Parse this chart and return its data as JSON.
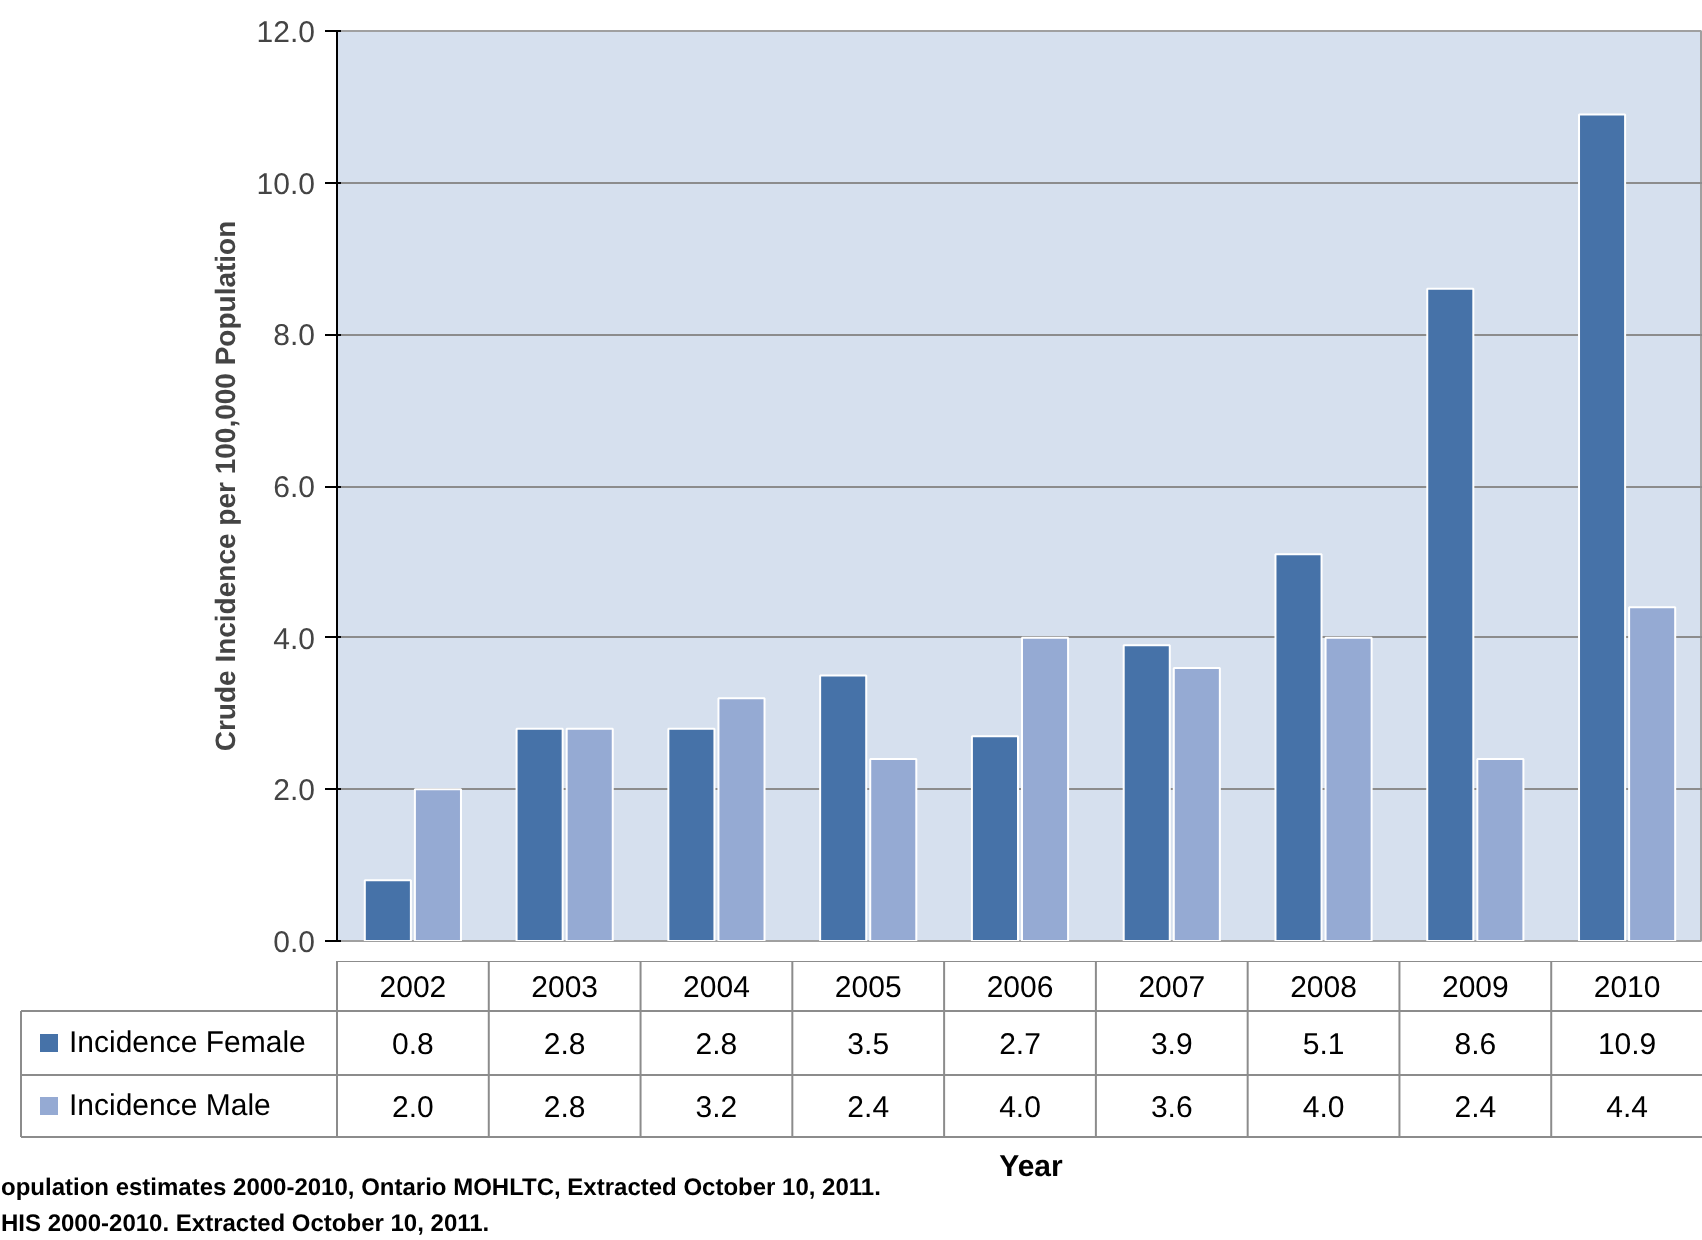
{
  "chart_data": {
    "type": "bar",
    "xlabel": "Year",
    "ylabel": "Crude Incidence per 100,000 Population",
    "categories": [
      "2002",
      "2003",
      "2004",
      "2005",
      "2006",
      "2007",
      "2008",
      "2009",
      "2010"
    ],
    "series": [
      {
        "name": "Incidence Female",
        "color": "#4672a8",
        "values": [
          0.8,
          2.8,
          2.8,
          3.5,
          2.7,
          3.9,
          5.1,
          8.6,
          10.9
        ],
        "value_labels": [
          "0.8",
          "2.8",
          "2.8",
          "3.5",
          "2.7",
          "3.9",
          "5.1",
          "8.6",
          "10.9"
        ]
      },
      {
        "name": "Incidence Male",
        "color": "#95aad3",
        "values": [
          2.0,
          2.8,
          3.2,
          2.4,
          4.0,
          3.6,
          4.0,
          2.4,
          4.4
        ],
        "value_labels": [
          "2.0",
          "2.8",
          "3.2",
          "2.4",
          "4.0",
          "3.6",
          "4.0",
          "2.4",
          "4.4"
        ]
      }
    ],
    "ylim": [
      0,
      12
    ],
    "yticks": [
      {
        "value": 0,
        "label": "0.0"
      },
      {
        "value": 2,
        "label": "2.0"
      },
      {
        "value": 4,
        "label": "4.0"
      },
      {
        "value": 6,
        "label": "6.0"
      },
      {
        "value": 8,
        "label": "8.0"
      },
      {
        "value": 10,
        "label": "10.0"
      },
      {
        "value": 12,
        "label": "12.0"
      }
    ],
    "grid": "y",
    "legend": "bottom",
    "annotations": [
      "opulation estimates 2000-2010, Ontario MOHLTC, Extracted October 10, 2011.",
      "HIS 2000-2010.  Extracted October 10, 2011."
    ]
  }
}
